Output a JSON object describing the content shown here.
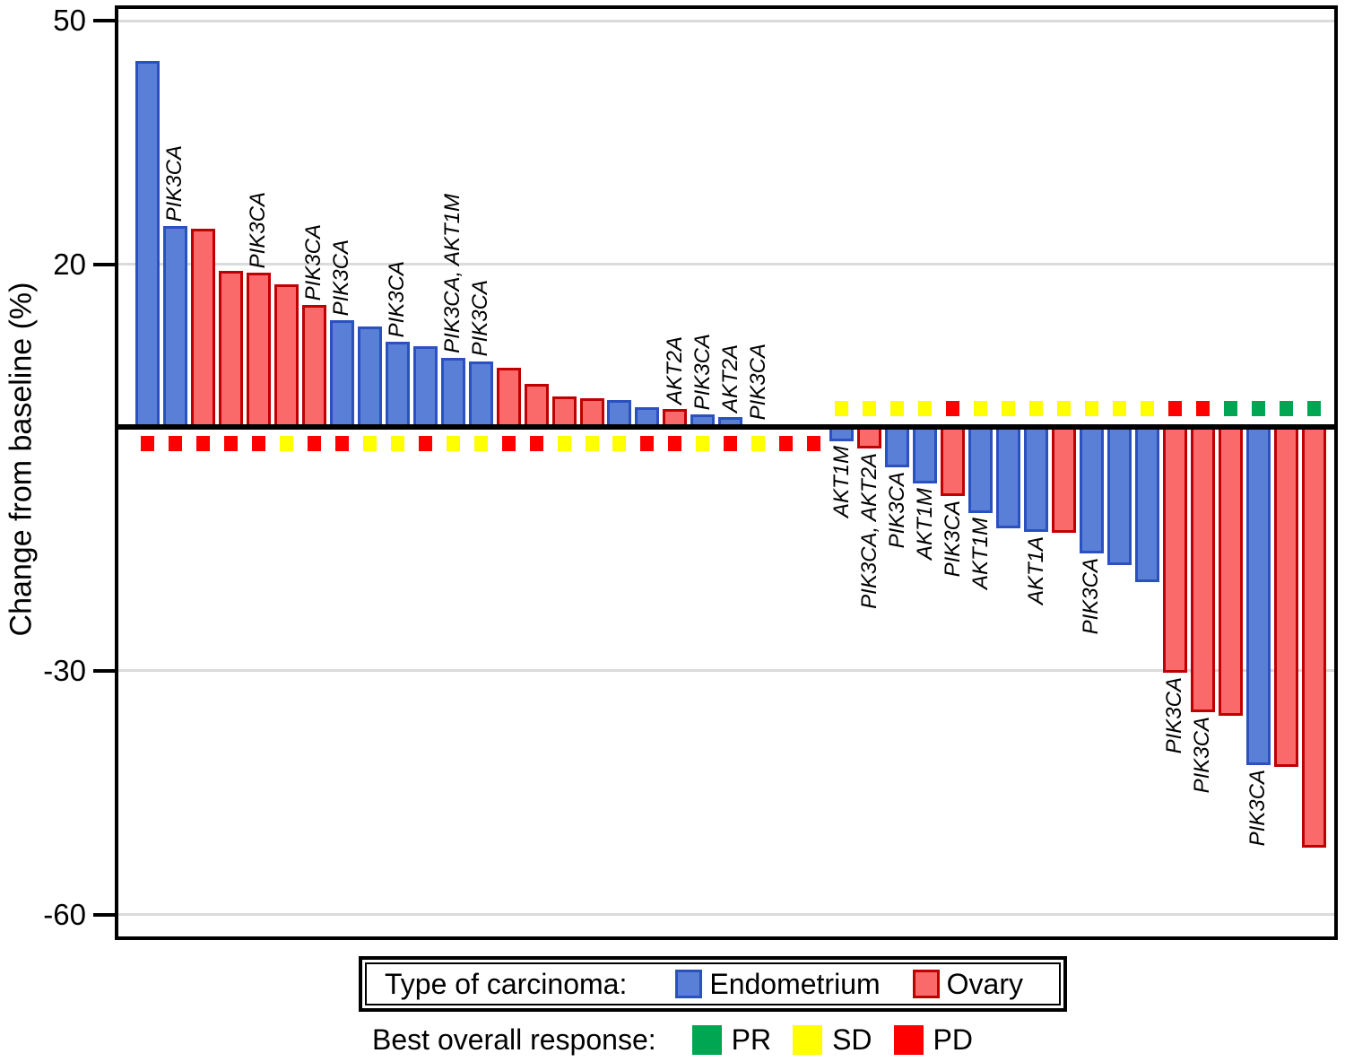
{
  "figure": {
    "ylabel": "Change from baseline (%)"
  },
  "chart_data": {
    "type": "bar",
    "subtype": "waterfall",
    "title": "",
    "xlabel": "",
    "ylabel": "Change from baseline (%)",
    "ylim": [
      -63,
      51.5
    ],
    "yticks": [
      50,
      20,
      -30,
      -60
    ],
    "grid": true,
    "colors": {
      "endometrium": {
        "fill": "#5A7FD6",
        "border": "#2B50C0"
      },
      "ovary": {
        "fill": "#FB6A6A",
        "border": "#C00000"
      },
      "response": {
        "PR": "#00A651",
        "SD": "#FFFF00",
        "PD": "#FF0000"
      }
    },
    "bars": [
      {
        "value": 45.0,
        "carcinoma": "endometrium",
        "response": "PD",
        "mutation": null
      },
      {
        "value": 24.7,
        "carcinoma": "endometrium",
        "response": "PD",
        "mutation": "PIK3CA"
      },
      {
        "value": 24.4,
        "carcinoma": "ovary",
        "response": "PD",
        "mutation": null
      },
      {
        "value": 19.2,
        "carcinoma": "ovary",
        "response": "PD",
        "mutation": null
      },
      {
        "value": 19.0,
        "carcinoma": "ovary",
        "response": "PD",
        "mutation": "PIK3CA"
      },
      {
        "value": 17.5,
        "carcinoma": "ovary",
        "response": "SD",
        "mutation": null
      },
      {
        "value": 15.0,
        "carcinoma": "ovary",
        "response": "PD",
        "mutation": "PIK3CA"
      },
      {
        "value": 13.1,
        "carcinoma": "endometrium",
        "response": "PD",
        "mutation": "PIK3CA"
      },
      {
        "value": 12.4,
        "carcinoma": "endometrium",
        "response": "SD",
        "mutation": null
      },
      {
        "value": 10.5,
        "carcinoma": "endometrium",
        "response": "SD",
        "mutation": "PIK3CA"
      },
      {
        "value": 9.9,
        "carcinoma": "endometrium",
        "response": "PD",
        "mutation": null
      },
      {
        "value": 8.5,
        "carcinoma": "endometrium",
        "response": "SD",
        "mutation": "PIK3CA, AKT1M"
      },
      {
        "value": 8.1,
        "carcinoma": "endometrium",
        "response": "SD",
        "mutation": "PIK3CA"
      },
      {
        "value": 7.3,
        "carcinoma": "ovary",
        "response": "PD",
        "mutation": null
      },
      {
        "value": 5.3,
        "carcinoma": "ovary",
        "response": "PD",
        "mutation": null
      },
      {
        "value": 3.8,
        "carcinoma": "ovary",
        "response": "SD",
        "mutation": null
      },
      {
        "value": 3.5,
        "carcinoma": "ovary",
        "response": "SD",
        "mutation": null
      },
      {
        "value": 3.3,
        "carcinoma": "endometrium",
        "response": "SD",
        "mutation": null
      },
      {
        "value": 2.4,
        "carcinoma": "endometrium",
        "response": "PD",
        "mutation": null
      },
      {
        "value": 2.2,
        "carcinoma": "ovary",
        "response": "PD",
        "mutation": "AKT2A"
      },
      {
        "value": 1.5,
        "carcinoma": "endometrium",
        "response": "SD",
        "mutation": "PIK3CA"
      },
      {
        "value": 1.2,
        "carcinoma": "endometrium",
        "response": "PD",
        "mutation": "AKT2A"
      },
      {
        "value": 0.3,
        "carcinoma": "endometrium",
        "response": "SD",
        "mutation": "PIK3CA"
      },
      {
        "value": 0.1,
        "carcinoma": "ovary",
        "response": "PD",
        "mutation": null
      },
      {
        "value": 0.0,
        "carcinoma": "ovary",
        "response": "PD",
        "mutation": null
      },
      {
        "value": -1.8,
        "carcinoma": "endometrium",
        "response": "SD",
        "mutation": "AKT1M"
      },
      {
        "value": -2.7,
        "carcinoma": "ovary",
        "response": "SD",
        "mutation": "PIK3CA, AKT2A"
      },
      {
        "value": -5.0,
        "carcinoma": "endometrium",
        "response": "SD",
        "mutation": "PIK3CA"
      },
      {
        "value": -7.0,
        "carcinoma": "endometrium",
        "response": "SD",
        "mutation": "AKT1M"
      },
      {
        "value": -8.5,
        "carcinoma": "ovary",
        "response": "PD",
        "mutation": "PIK3CA"
      },
      {
        "value": -10.6,
        "carcinoma": "endometrium",
        "response": "SD",
        "mutation": "AKT1M"
      },
      {
        "value": -12.5,
        "carcinoma": "endometrium",
        "response": "SD",
        "mutation": null
      },
      {
        "value": -12.9,
        "carcinoma": "endometrium",
        "response": "SD",
        "mutation": "AKT1A"
      },
      {
        "value": -13.0,
        "carcinoma": "ovary",
        "response": "SD",
        "mutation": null
      },
      {
        "value": -15.6,
        "carcinoma": "endometrium",
        "response": "SD",
        "mutation": "PIK3CA"
      },
      {
        "value": -17.0,
        "carcinoma": "endometrium",
        "response": "SD",
        "mutation": null
      },
      {
        "value": -19.1,
        "carcinoma": "endometrium",
        "response": "SD",
        "mutation": null
      },
      {
        "value": -30.2,
        "carcinoma": "ovary",
        "response": "PD",
        "mutation": "PIK3CA"
      },
      {
        "value": -35.1,
        "carcinoma": "ovary",
        "response": "PD",
        "mutation": "PIK3CA"
      },
      {
        "value": -35.5,
        "carcinoma": "ovary",
        "response": "PR",
        "mutation": null
      },
      {
        "value": -41.6,
        "carcinoma": "endometrium",
        "response": "PR",
        "mutation": "PIK3CA"
      },
      {
        "value": -41.8,
        "carcinoma": "ovary",
        "response": "PR",
        "mutation": null
      },
      {
        "value": -51.8,
        "carcinoma": "ovary",
        "response": "PR",
        "mutation": null
      }
    ]
  },
  "legend_carcinoma": {
    "title": "Type of carcinoma:",
    "items": [
      {
        "label": "Endometrium",
        "fill": "#5A7FD6",
        "border": "#2B50C0"
      },
      {
        "label": "Ovary",
        "fill": "#FB6A6A",
        "border": "#C00000"
      }
    ]
  },
  "legend_response": {
    "title": "Best overall response:",
    "items": [
      {
        "label": "PR",
        "color": "#00A651"
      },
      {
        "label": "SD",
        "color": "#FFFF00"
      },
      {
        "label": "PD",
        "color": "#FF0000"
      }
    ]
  }
}
